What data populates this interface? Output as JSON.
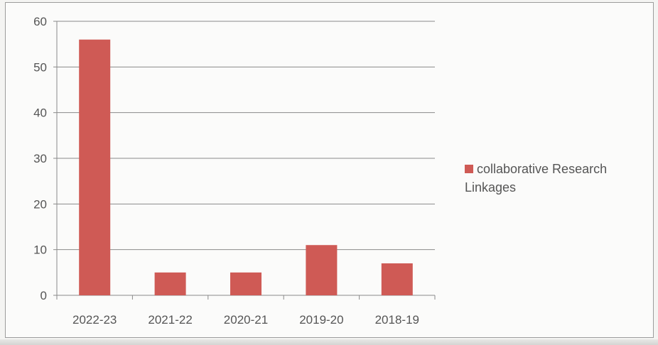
{
  "chart_data": {
    "type": "bar",
    "categories": [
      "2022-23",
      "2021-22",
      "2020-21",
      "2019-20",
      "2018-19"
    ],
    "series": [
      {
        "name": "collaborative Research Linkages",
        "values": [
          56,
          5,
          5,
          11,
          7
        ]
      }
    ],
    "ylim": [
      0,
      60
    ],
    "yticks": [
      0,
      10,
      20,
      30,
      40,
      50,
      60
    ],
    "ytick_labels": [
      "0",
      "10",
      "20",
      "30",
      "40",
      "50",
      "60"
    ],
    "grid": true,
    "legend_position": "right",
    "bar_color": "#cf5a55",
    "title": "",
    "xlabel": "",
    "ylabel": ""
  },
  "legend": {
    "line1": "collaborative Research",
    "line2": "Linkages"
  }
}
